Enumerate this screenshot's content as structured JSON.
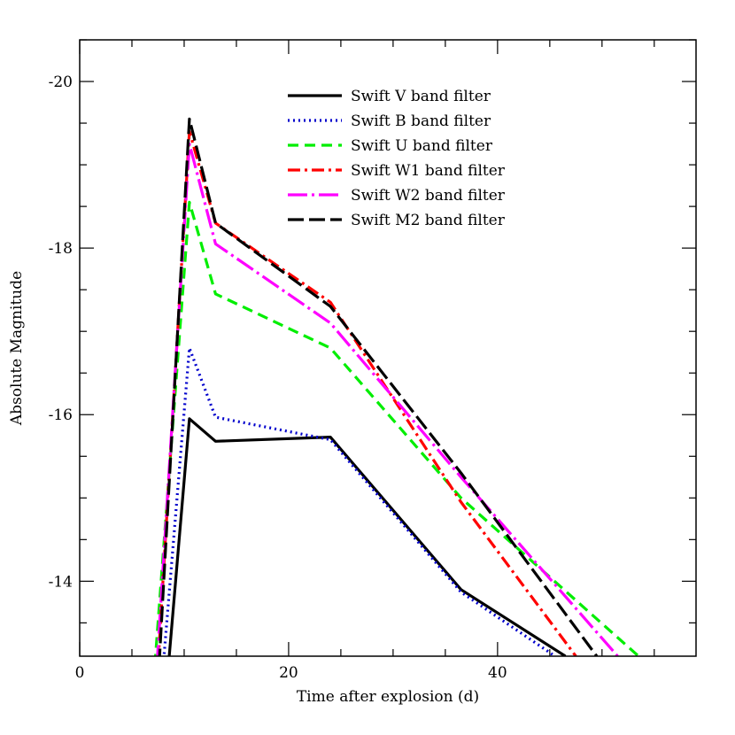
{
  "chart_data": {
    "type": "line",
    "xlabel": "Time after explosion (d)",
    "ylabel": "Absolute Magnitude",
    "xlim": [
      0,
      59
    ],
    "ylim": [
      -13.1,
      -20.5
    ],
    "y_inverted": true,
    "x_major_ticks": [
      0,
      20,
      40
    ],
    "y_major_ticks": [
      -20,
      -18,
      -16,
      -14
    ],
    "x_tick_labels": [
      "0",
      "20",
      "40"
    ],
    "y_tick_labels": [
      "-20",
      "-18",
      "-16",
      "-14"
    ],
    "grid": false,
    "legend_position": "top-right",
    "series": [
      {
        "name": "Swift V band filter",
        "color": "#000000",
        "style": "solid",
        "points": [
          [
            8.5,
            -13.0
          ],
          [
            10.5,
            -15.95
          ],
          [
            13.0,
            -15.68
          ],
          [
            24.0,
            -15.73
          ],
          [
            36.5,
            -13.9
          ],
          [
            46.5,
            -13.1
          ]
        ]
      },
      {
        "name": "Swift B band filter",
        "color": "#0000cc",
        "style": "dotted",
        "points": [
          [
            8.0,
            -13.0
          ],
          [
            10.5,
            -16.8
          ],
          [
            13.0,
            -15.97
          ],
          [
            24.0,
            -15.7
          ],
          [
            36.5,
            -13.87
          ],
          [
            45.5,
            -13.1
          ]
        ]
      },
      {
        "name": "Swift U band filter",
        "color": "#00ee00",
        "style": "dashed",
        "points": [
          [
            7.2,
            -13.0
          ],
          [
            10.5,
            -18.55
          ],
          [
            13.0,
            -17.45
          ],
          [
            24.0,
            -16.8
          ],
          [
            36.5,
            -15.0
          ],
          [
            53.5,
            -13.1
          ]
        ]
      },
      {
        "name": "Swift W1 band filter",
        "color": "#ff0000",
        "style": "dashdot",
        "points": [
          [
            7.5,
            -13.0
          ],
          [
            10.5,
            -19.4
          ],
          [
            13.0,
            -18.3
          ],
          [
            24.0,
            -17.35
          ],
          [
            36.5,
            -14.95
          ],
          [
            47.5,
            -13.1
          ]
        ]
      },
      {
        "name": "Swift W2 band filter",
        "color": "#ff00ff",
        "style": "longdashdot",
        "points": [
          [
            7.4,
            -13.0
          ],
          [
            10.5,
            -19.25
          ],
          [
            13.0,
            -18.05
          ],
          [
            24.0,
            -17.1
          ],
          [
            36.5,
            -15.25
          ],
          [
            51.5,
            -13.1
          ]
        ]
      },
      {
        "name": "Swift M2 band filter",
        "color": "#000000",
        "style": "longdash",
        "points": [
          [
            7.6,
            -13.0
          ],
          [
            10.5,
            -19.55
          ],
          [
            13.0,
            -18.3
          ],
          [
            24.0,
            -17.3
          ],
          [
            36.5,
            -15.3
          ],
          [
            49.5,
            -13.1
          ]
        ]
      }
    ]
  }
}
